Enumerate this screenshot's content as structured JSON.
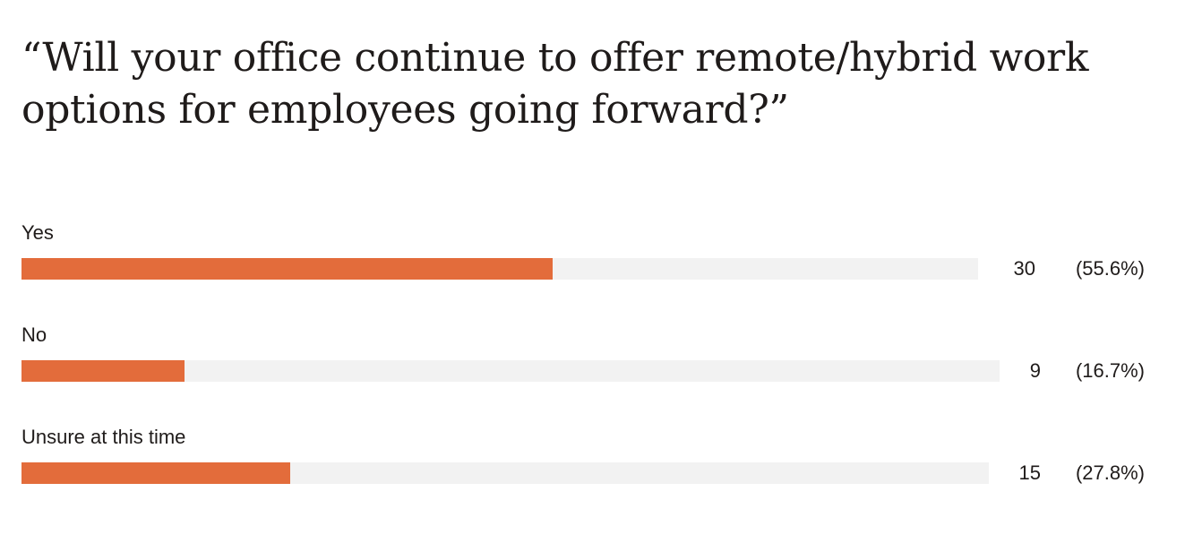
{
  "chart_data": {
    "type": "bar",
    "orientation": "horizontal",
    "title": "“Will your office continue to offer remote/hybrid work options for employees going forward?”",
    "categories": [
      "Yes",
      "No",
      "Unsure at this time"
    ],
    "values": [
      30,
      9,
      15
    ],
    "percent_labels": [
      "(55.6%)",
      "(16.7%)",
      "(27.8%)"
    ],
    "xlim": [
      0,
      54
    ],
    "grid": false,
    "legend": "none",
    "colors": {
      "bar": "#e36c3b",
      "track": "#f2f2f2",
      "text": "#1f1b1a"
    }
  }
}
